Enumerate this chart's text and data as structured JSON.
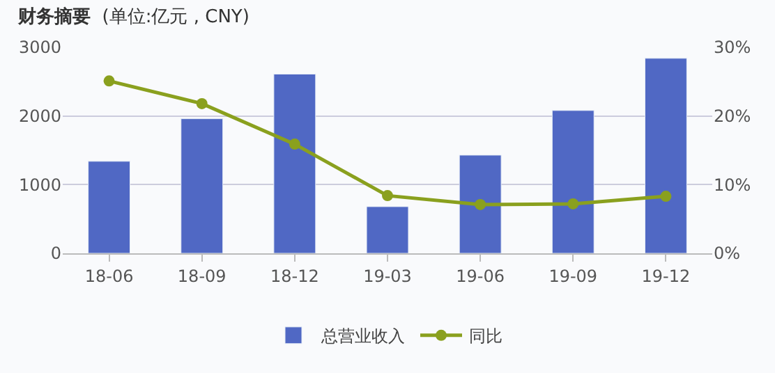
{
  "chart_data": {
    "type": "bar",
    "title": "财务摘要",
    "subtitle": "(单位:亿元 , CNY)",
    "categories": [
      "18-06",
      "18-09",
      "18-12",
      "19-03",
      "19-06",
      "19-09",
      "19-12"
    ],
    "series": [
      {
        "name": "总营业收入",
        "color": "#5068c4",
        "values": [
          1340,
          1960,
          2610,
          680,
          1430,
          2080,
          2840
        ]
      },
      {
        "name": "同比",
        "type": "line",
        "axis": "y2",
        "color": "#8aa01e",
        "marker": "circle",
        "values": [
          25.1,
          21.8,
          15.9,
          8.4,
          7.1,
          7.2,
          8.3
        ]
      }
    ],
    "ylim": [
      0,
      3000
    ],
    "yticks": [
      0,
      1000,
      2000,
      3000
    ],
    "y2lim": [
      0,
      30
    ],
    "y2ticks": [
      {
        "value": 0,
        "label": "0%"
      },
      {
        "value": 10,
        "label": "10%"
      },
      {
        "value": 20,
        "label": "20%"
      },
      {
        "value": 30,
        "label": "30%"
      }
    ],
    "grid": "y",
    "legend": "bottom"
  }
}
